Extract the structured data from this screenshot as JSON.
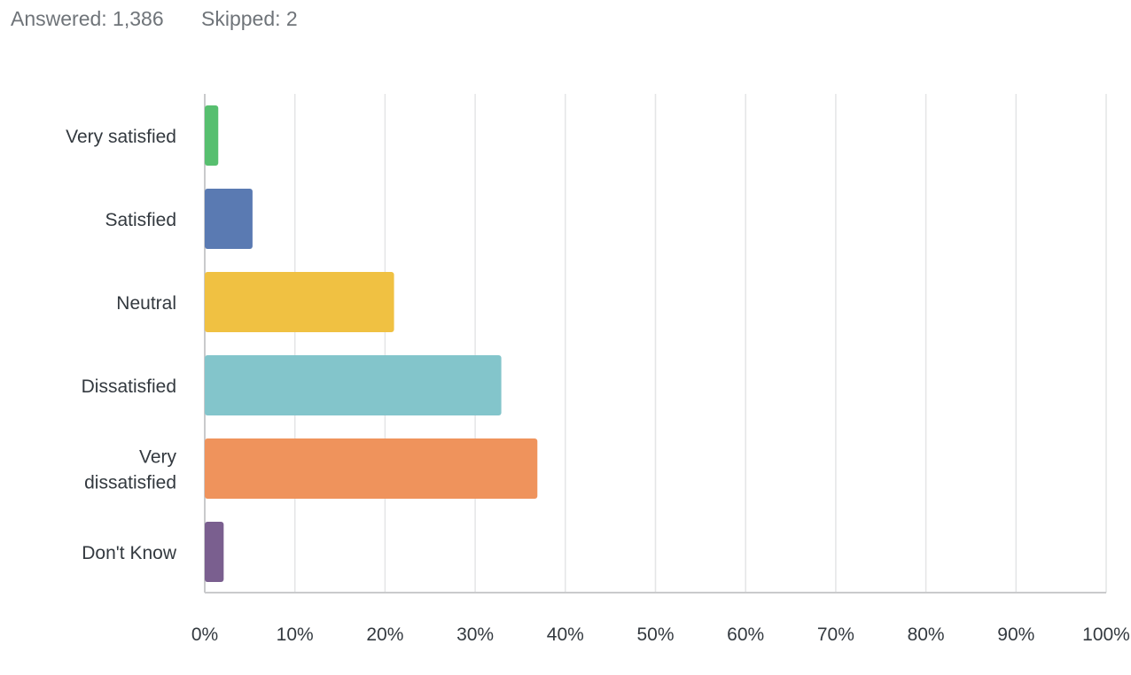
{
  "header": {
    "answered": "Answered: 1,386",
    "skipped": "Skipped: 2"
  },
  "chart_data": {
    "type": "bar",
    "orientation": "horizontal",
    "categories": [
      [
        "Very satisfied"
      ],
      [
        "Satisfied"
      ],
      [
        "Neutral"
      ],
      [
        "Dissatisfied"
      ],
      [
        "Very",
        "dissatisfied"
      ],
      [
        "Don't Know"
      ]
    ],
    "values": [
      1.5,
      5.3,
      21.0,
      32.9,
      36.9,
      2.1
    ],
    "colors": [
      "#57bf6f",
      "#5a7ab2",
      "#f0c142",
      "#83c5cb",
      "#ef935c",
      "#7a5f8f"
    ],
    "x_ticks": [
      "0%",
      "10%",
      "20%",
      "30%",
      "40%",
      "50%",
      "60%",
      "70%",
      "80%",
      "90%",
      "100%"
    ],
    "xlim": [
      0,
      100
    ],
    "grid": true,
    "legend": "none"
  }
}
